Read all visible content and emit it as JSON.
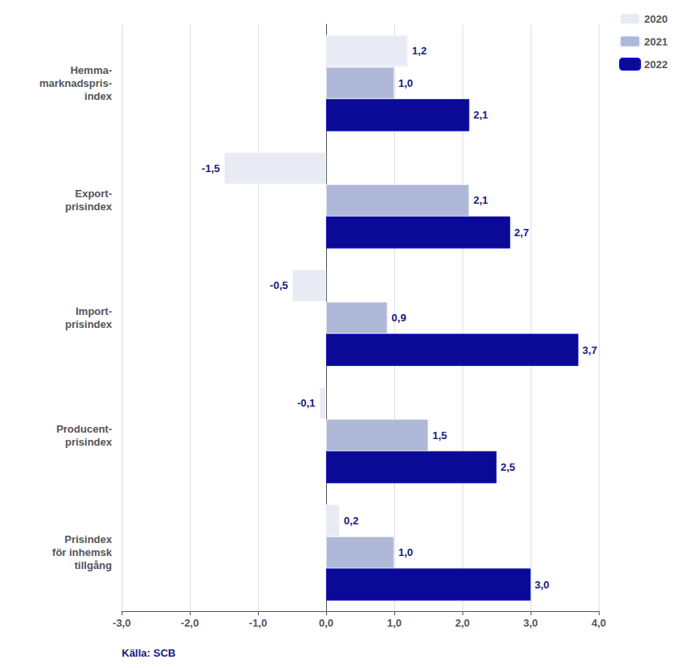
{
  "chart_data": {
    "type": "bar",
    "orientation": "horizontal",
    "categories": [
      "Hemma-\nmarknadspris-\nindex",
      "Export-\nprisindex",
      "Import-\nprisindex",
      "Producent-\nprisindex",
      "Prisindex\nför inhemsk\ntillgång"
    ],
    "series": [
      {
        "name": "2020",
        "color": "#e8eaf4",
        "values": [
          1.2,
          -1.5,
          -0.5,
          -0.1,
          0.2
        ],
        "value_labels": [
          "1,2",
          "-1,5",
          "-0,5",
          "-0,1",
          "0,2"
        ]
      },
      {
        "name": "2021",
        "color": "#b0b8d8",
        "values": [
          1.0,
          2.1,
          0.9,
          1.5,
          1.0
        ],
        "value_labels": [
          "1,0",
          "2,1",
          "0,9",
          "1,5",
          "1,0"
        ]
      },
      {
        "name": "2022",
        "color": "#0a0a96",
        "values": [
          2.1,
          2.7,
          3.7,
          2.5,
          3.0
        ],
        "value_labels": [
          "2,1",
          "2,7",
          "3,7",
          "2,5",
          "3,0"
        ]
      }
    ],
    "xlim": [
      -3.0,
      4.0
    ],
    "xticks": [
      {
        "value": -3.0,
        "label": "-3,0"
      },
      {
        "value": -2.0,
        "label": "-2,0"
      },
      {
        "value": -1.0,
        "label": "-1,0"
      },
      {
        "value": 0.0,
        "label": "0,0"
      },
      {
        "value": 1.0,
        "label": "1,0"
      },
      {
        "value": 2.0,
        "label": "2,0"
      },
      {
        "value": 3.0,
        "label": "3,0"
      },
      {
        "value": 4.0,
        "label": "4,0"
      }
    ],
    "grid": true,
    "legend": "upper right",
    "data_labels": true,
    "annotations": [
      "Källa: SCB"
    ]
  }
}
